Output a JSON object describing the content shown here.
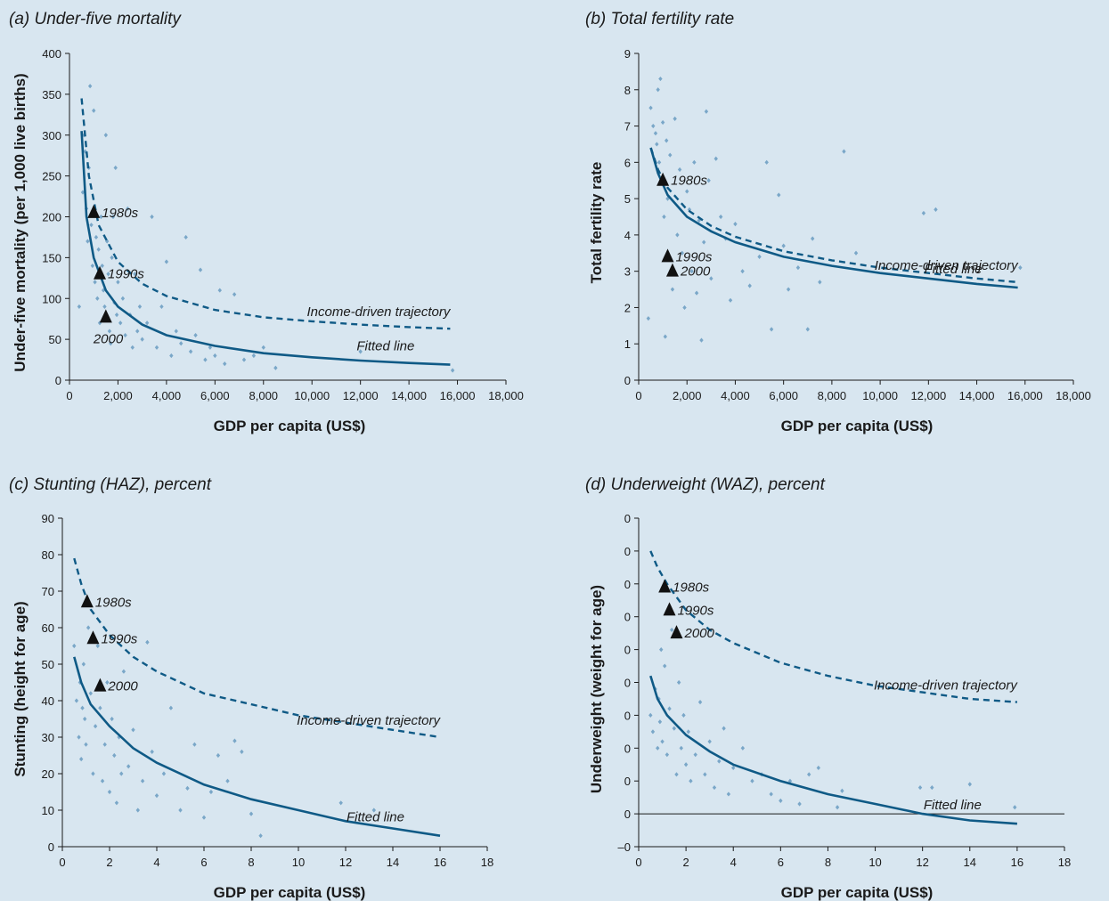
{
  "chart_data": [
    {
      "type": "scatter",
      "title": "(a) Under-five mortality",
      "xlabel": "GDP per capita (US$)",
      "ylabel": "Under-five mortality (per 1,000 live births)",
      "xlim": [
        0,
        18000
      ],
      "ylim": [
        0,
        400
      ],
      "xticks": [
        "0",
        "2,000",
        "4,000",
        "6,000",
        "8,000",
        "10,000",
        "12,000",
        "14,000",
        "16,000",
        "18,000"
      ],
      "yticks": [
        "0",
        "50",
        "100",
        "150",
        "200",
        "250",
        "300",
        "350",
        "400"
      ],
      "fitted_line": {
        "label": "Fitted line",
        "x": [
          500,
          700,
          1000,
          1500,
          2000,
          3000,
          4000,
          6000,
          8000,
          10000,
          12000,
          14000,
          15700
        ],
        "y": [
          305,
          200,
          150,
          110,
          90,
          68,
          55,
          42,
          33,
          28,
          24,
          21,
          19
        ]
      },
      "income_trajectory": {
        "label": "Income-driven trajectory",
        "x": [
          500,
          800,
          1200,
          2000,
          3000,
          4000,
          6000,
          8000,
          10000,
          12000,
          14000,
          15700
        ],
        "y": [
          345,
          250,
          190,
          145,
          118,
          103,
          86,
          77,
          72,
          68,
          65,
          63
        ]
      },
      "markers": [
        {
          "label": "1980s",
          "x": 1000,
          "y": 205
        },
        {
          "label": "1990s",
          "x": 1250,
          "y": 130
        },
        {
          "label": "2000",
          "x": 1500,
          "y": 77
        }
      ],
      "scatter": [
        [
          400,
          90
        ],
        [
          550,
          230
        ],
        [
          600,
          300
        ],
        [
          650,
          280
        ],
        [
          700,
          210
        ],
        [
          750,
          170
        ],
        [
          800,
          260
        ],
        [
          850,
          360
        ],
        [
          900,
          190
        ],
        [
          950,
          140
        ],
        [
          1000,
          330
        ],
        [
          1050,
          120
        ],
        [
          1100,
          175
        ],
        [
          1150,
          100
        ],
        [
          1200,
          160
        ],
        [
          1250,
          70
        ],
        [
          1300,
          200
        ],
        [
          1350,
          140
        ],
        [
          1400,
          110
        ],
        [
          1450,
          90
        ],
        [
          1500,
          300
        ],
        [
          1550,
          170
        ],
        [
          1600,
          130
        ],
        [
          1650,
          60
        ],
        [
          1700,
          45
        ],
        [
          1750,
          150
        ],
        [
          1800,
          200
        ],
        [
          1850,
          95
        ],
        [
          1900,
          260
        ],
        [
          1950,
          80
        ],
        [
          2000,
          120
        ],
        [
          2100,
          70
        ],
        [
          2200,
          100
        ],
        [
          2300,
          55
        ],
        [
          2400,
          210
        ],
        [
          2500,
          80
        ],
        [
          2600,
          40
        ],
        [
          2700,
          130
        ],
        [
          2800,
          60
        ],
        [
          2900,
          90
        ],
        [
          3000,
          50
        ],
        [
          3200,
          70
        ],
        [
          3400,
          200
        ],
        [
          3600,
          40
        ],
        [
          3800,
          90
        ],
        [
          4000,
          145
        ],
        [
          4200,
          30
        ],
        [
          4400,
          60
        ],
        [
          4600,
          45
        ],
        [
          4800,
          175
        ],
        [
          5000,
          35
        ],
        [
          5200,
          55
        ],
        [
          5400,
          135
        ],
        [
          5600,
          25
        ],
        [
          5800,
          40
        ],
        [
          6000,
          30
        ],
        [
          6200,
          110
        ],
        [
          6400,
          20
        ],
        [
          6800,
          105
        ],
        [
          7200,
          25
        ],
        [
          7600,
          30
        ],
        [
          8000,
          40
        ],
        [
          8500,
          15
        ],
        [
          12000,
          35
        ],
        [
          15800,
          12
        ]
      ]
    },
    {
      "type": "scatter",
      "title": "(b) Total fertility rate",
      "xlabel": "GDP per capita (US$)",
      "ylabel": "Total fertility rate",
      "xlim": [
        0,
        18000
      ],
      "ylim": [
        0,
        9
      ],
      "xticks": [
        "0",
        "2,000",
        "4,000",
        "6,000",
        "8,000",
        "10,000",
        "12,000",
        "14,000",
        "16,000",
        "18,000"
      ],
      "yticks": [
        "0",
        "1",
        "2",
        "3",
        "4",
        "5",
        "6",
        "7",
        "8",
        "9"
      ],
      "fitted_line": {
        "label": "Fitted line",
        "x": [
          500,
          800,
          1200,
          2000,
          3000,
          4000,
          6000,
          8000,
          10000,
          12000,
          14000,
          15700
        ],
        "y": [
          6.4,
          5.7,
          5.1,
          4.5,
          4.1,
          3.8,
          3.4,
          3.15,
          2.95,
          2.8,
          2.65,
          2.55
        ]
      },
      "income_trajectory": {
        "label": "Income-driven trajectory",
        "x": [
          500,
          800,
          1200,
          2000,
          3000,
          4000,
          6000,
          8000,
          10000,
          12000,
          14000,
          15700
        ],
        "y": [
          6.4,
          5.8,
          5.3,
          4.7,
          4.25,
          3.95,
          3.55,
          3.3,
          3.1,
          2.95,
          2.8,
          2.7
        ]
      },
      "markers": [
        {
          "label": "1980s",
          "x": 1000,
          "y": 5.5
        },
        {
          "label": "1990s",
          "x": 1200,
          "y": 3.4
        },
        {
          "label": "2000",
          "x": 1400,
          "y": 3.0
        }
      ],
      "scatter": [
        [
          400,
          1.7
        ],
        [
          500,
          7.5
        ],
        [
          600,
          7.0
        ],
        [
          700,
          6.8
        ],
        [
          750,
          6.5
        ],
        [
          800,
          8.0
        ],
        [
          850,
          6.0
        ],
        [
          900,
          8.3
        ],
        [
          950,
          5.5
        ],
        [
          1000,
          7.1
        ],
        [
          1050,
          4.5
        ],
        [
          1100,
          1.2
        ],
        [
          1150,
          6.6
        ],
        [
          1200,
          5.0
        ],
        [
          1300,
          6.2
        ],
        [
          1400,
          2.5
        ],
        [
          1500,
          7.2
        ],
        [
          1600,
          4.0
        ],
        [
          1700,
          5.8
        ],
        [
          1800,
          3.5
        ],
        [
          1900,
          2.0
        ],
        [
          2000,
          5.2
        ],
        [
          2100,
          4.7
        ],
        [
          2200,
          3.0
        ],
        [
          2300,
          6.0
        ],
        [
          2400,
          2.4
        ],
        [
          2500,
          4.4
        ],
        [
          2600,
          1.1
        ],
        [
          2700,
          3.8
        ],
        [
          2800,
          7.4
        ],
        [
          2900,
          5.5
        ],
        [
          3000,
          2.8
        ],
        [
          3200,
          6.1
        ],
        [
          3400,
          4.5
        ],
        [
          3600,
          3.9
        ],
        [
          3800,
          2.2
        ],
        [
          4000,
          4.3
        ],
        [
          4300,
          3.0
        ],
        [
          4600,
          2.6
        ],
        [
          5000,
          3.4
        ],
        [
          5300,
          6.0
        ],
        [
          5500,
          1.4
        ],
        [
          5800,
          5.1
        ],
        [
          6000,
          3.7
        ],
        [
          6200,
          2.5
        ],
        [
          6600,
          3.1
        ],
        [
          7000,
          1.4
        ],
        [
          7200,
          3.9
        ],
        [
          7500,
          2.7
        ],
        [
          8500,
          6.3
        ],
        [
          9000,
          3.5
        ],
        [
          11800,
          4.6
        ],
        [
          12300,
          4.7
        ],
        [
          15800,
          3.1
        ]
      ]
    },
    {
      "type": "scatter",
      "title": "(c) Stunting (HAZ), percent",
      "xlabel": "GDP per capita (US$)",
      "ylabel": "Stunting (height for age)",
      "xlim": [
        0,
        18000
      ],
      "ylim": [
        0,
        90
      ],
      "xticks": [
        "0",
        "2",
        "4",
        "6",
        "8",
        "10",
        "12",
        "14",
        "16",
        "18"
      ],
      "yticks": [
        "0",
        "10",
        "20",
        "30",
        "40",
        "50",
        "60",
        "70",
        "80",
        "90"
      ],
      "fitted_line": {
        "label": "Fitted line",
        "x": [
          500,
          800,
          1200,
          2000,
          3000,
          4000,
          6000,
          8000,
          10000,
          12000,
          14000,
          16000
        ],
        "y": [
          52,
          45,
          39,
          33,
          27,
          23,
          17,
          13,
          10,
          7,
          5,
          3
        ]
      },
      "income_trajectory": {
        "label": "Income-driven trajectory",
        "x": [
          500,
          800,
          1200,
          2000,
          3000,
          4000,
          6000,
          8000,
          10000,
          12000,
          14000,
          16000
        ],
        "y": [
          79,
          72,
          65,
          58,
          52,
          48,
          42,
          39,
          36,
          34,
          32,
          30
        ]
      },
      "markers": [
        {
          "label": "1980s",
          "x": 1050,
          "y": 67
        },
        {
          "label": "1990s",
          "x": 1300,
          "y": 57
        },
        {
          "label": "2000",
          "x": 1600,
          "y": 44
        }
      ],
      "scatter": [
        [
          500,
          55
        ],
        [
          600,
          40
        ],
        [
          700,
          30
        ],
        [
          750,
          45
        ],
        [
          800,
          24
        ],
        [
          850,
          38
        ],
        [
          900,
          50
        ],
        [
          950,
          35
        ],
        [
          1000,
          28
        ],
        [
          1100,
          60
        ],
        [
          1200,
          42
        ],
        [
          1300,
          20
        ],
        [
          1400,
          33
        ],
        [
          1500,
          55
        ],
        [
          1600,
          38
        ],
        [
          1700,
          18
        ],
        [
          1800,
          28
        ],
        [
          1900,
          45
        ],
        [
          2000,
          15
        ],
        [
          2100,
          35
        ],
        [
          2200,
          25
        ],
        [
          2300,
          12
        ],
        [
          2400,
          30
        ],
        [
          2500,
          20
        ],
        [
          2600,
          48
        ],
        [
          2800,
          22
        ],
        [
          3000,
          32
        ],
        [
          3200,
          10
        ],
        [
          3400,
          18
        ],
        [
          3600,
          56
        ],
        [
          3800,
          26
        ],
        [
          4000,
          14
        ],
        [
          4300,
          20
        ],
        [
          4600,
          38
        ],
        [
          5000,
          10
        ],
        [
          5300,
          16
        ],
        [
          5600,
          28
        ],
        [
          6000,
          8
        ],
        [
          6300,
          15
        ],
        [
          6600,
          25
        ],
        [
          7000,
          18
        ],
        [
          7300,
          29
        ],
        [
          7600,
          26
        ],
        [
          8000,
          9
        ],
        [
          8400,
          3
        ],
        [
          11800,
          12
        ],
        [
          13200,
          10
        ]
      ]
    },
    {
      "type": "scatter",
      "title": "(d) Underweight (WAZ), percent",
      "xlabel": "GDP per capita (US$)",
      "ylabel": "Underweight (weight for age)",
      "xlim": [
        0,
        18000
      ],
      "ylim": [
        -10,
        90
      ],
      "xticks": [
        "0",
        "2",
        "4",
        "6",
        "8",
        "10",
        "12",
        "14",
        "16",
        "18"
      ],
      "yticks": [
        "–0",
        "0",
        "0",
        "0",
        "0",
        "0",
        "0",
        "0",
        "0",
        "0",
        "0"
      ],
      "fitted_line": {
        "label": "Fitted line",
        "x": [
          500,
          800,
          1200,
          2000,
          3000,
          4000,
          6000,
          8000,
          10000,
          12000,
          14000,
          16000
        ],
        "y": [
          42,
          35,
          30,
          24,
          19,
          15,
          10,
          6,
          3,
          0,
          -2,
          -3
        ]
      },
      "income_trajectory": {
        "label": "Income-driven trajectory",
        "x": [
          500,
          800,
          1200,
          2000,
          3000,
          4000,
          6000,
          8000,
          10000,
          12000,
          14000,
          16000
        ],
        "y": [
          80,
          75,
          70,
          62,
          56,
          52,
          46,
          42,
          39,
          37,
          35,
          34
        ]
      },
      "markers": [
        {
          "label": "1980s",
          "x": 1100,
          "y": 69
        },
        {
          "label": "1990s",
          "x": 1300,
          "y": 62
        },
        {
          "label": "2000",
          "x": 1600,
          "y": 55
        }
      ],
      "scatter": [
        [
          500,
          30
        ],
        [
          600,
          25
        ],
        [
          700,
          38
        ],
        [
          800,
          20
        ],
        [
          850,
          35
        ],
        [
          900,
          28
        ],
        [
          950,
          50
        ],
        [
          1000,
          22
        ],
        [
          1100,
          45
        ],
        [
          1200,
          18
        ],
        [
          1300,
          32
        ],
        [
          1400,
          56
        ],
        [
          1500,
          26
        ],
        [
          1600,
          12
        ],
        [
          1700,
          40
        ],
        [
          1800,
          20
        ],
        [
          1900,
          30
        ],
        [
          2000,
          15
        ],
        [
          2100,
          25
        ],
        [
          2200,
          10
        ],
        [
          2400,
          18
        ],
        [
          2600,
          34
        ],
        [
          2800,
          12
        ],
        [
          3000,
          22
        ],
        [
          3200,
          8
        ],
        [
          3400,
          16
        ],
        [
          3600,
          26
        ],
        [
          3800,
          6
        ],
        [
          4000,
          14
        ],
        [
          4400,
          20
        ],
        [
          4800,
          10
        ],
        [
          5200,
          12
        ],
        [
          5600,
          6
        ],
        [
          6000,
          4
        ],
        [
          6400,
          10
        ],
        [
          6800,
          3
        ],
        [
          7200,
          12
        ],
        [
          7600,
          14
        ],
        [
          8400,
          2
        ],
        [
          8600,
          7
        ],
        [
          11900,
          8
        ],
        [
          12400,
          8
        ],
        [
          14000,
          9
        ],
        [
          15900,
          2
        ]
      ]
    }
  ]
}
